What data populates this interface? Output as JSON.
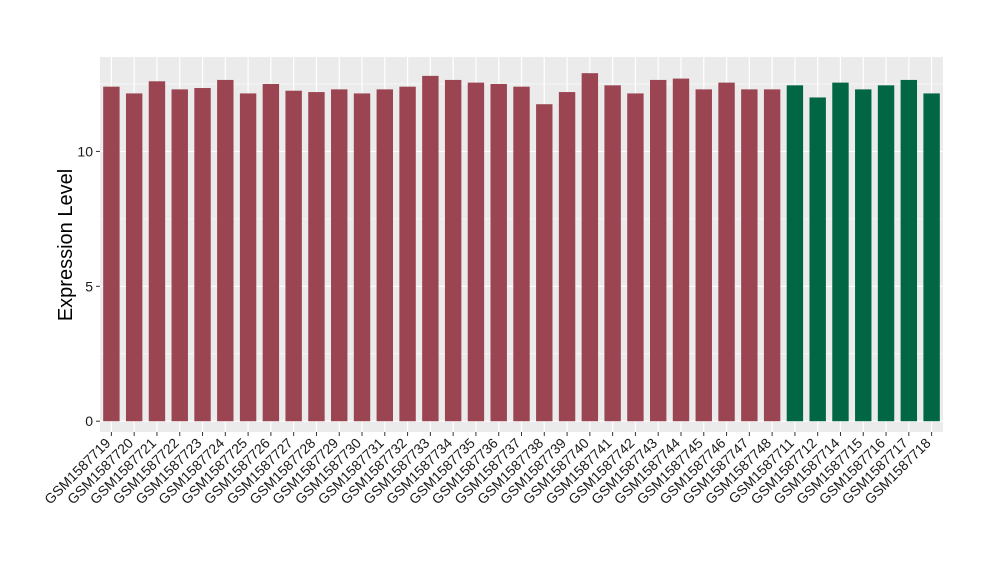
{
  "chart_data": {
    "type": "bar",
    "title": "",
    "xlabel": "",
    "ylabel": "Expression Level",
    "ylim": [
      -0.4,
      13.5
    ],
    "yticks": [
      0,
      5,
      10
    ],
    "grid": true,
    "legend": "none",
    "categories": [
      "GSM1587719",
      "GSM1587720",
      "GSM1587721",
      "GSM1587722",
      "GSM1587723",
      "GSM1587724",
      "GSM1587725",
      "GSM1587726",
      "GSM1587727",
      "GSM1587728",
      "GSM1587729",
      "GSM1587730",
      "GSM1587731",
      "GSM1587732",
      "GSM1587733",
      "GSM1587734",
      "GSM1587735",
      "GSM1587736",
      "GSM1587737",
      "GSM1587738",
      "GSM1587739",
      "GSM1587740",
      "GSM1587741",
      "GSM1587742",
      "GSM1587743",
      "GSM1587744",
      "GSM1587745",
      "GSM1587746",
      "GSM1587747",
      "GSM1587748",
      "GSM1587711",
      "GSM1587712",
      "GSM1587714",
      "GSM1587715",
      "GSM1587716",
      "GSM1587717",
      "GSM1587718"
    ],
    "values": [
      12.4,
      12.15,
      12.6,
      12.3,
      12.35,
      12.65,
      12.15,
      12.5,
      12.25,
      12.2,
      12.3,
      12.15,
      12.3,
      12.4,
      12.8,
      12.65,
      12.55,
      12.5,
      12.4,
      11.75,
      12.2,
      12.9,
      12.45,
      12.15,
      12.65,
      12.7,
      12.3,
      12.55,
      12.3,
      12.3,
      12.45,
      12.0,
      12.55,
      12.3,
      12.45,
      12.65,
      12.15
    ],
    "colors": [
      "#9b4452",
      "#9b4452",
      "#9b4452",
      "#9b4452",
      "#9b4452",
      "#9b4452",
      "#9b4452",
      "#9b4452",
      "#9b4452",
      "#9b4452",
      "#9b4452",
      "#9b4452",
      "#9b4452",
      "#9b4452",
      "#9b4452",
      "#9b4452",
      "#9b4452",
      "#9b4452",
      "#9b4452",
      "#9b4452",
      "#9b4452",
      "#9b4452",
      "#9b4452",
      "#9b4452",
      "#9b4452",
      "#9b4452",
      "#9b4452",
      "#9b4452",
      "#9b4452",
      "#9b4452",
      "#006644",
      "#006644",
      "#006644",
      "#006644",
      "#006644",
      "#006644",
      "#006644"
    ],
    "panel_background": "#ebebeb",
    "gridline_color": "#ffffff"
  }
}
